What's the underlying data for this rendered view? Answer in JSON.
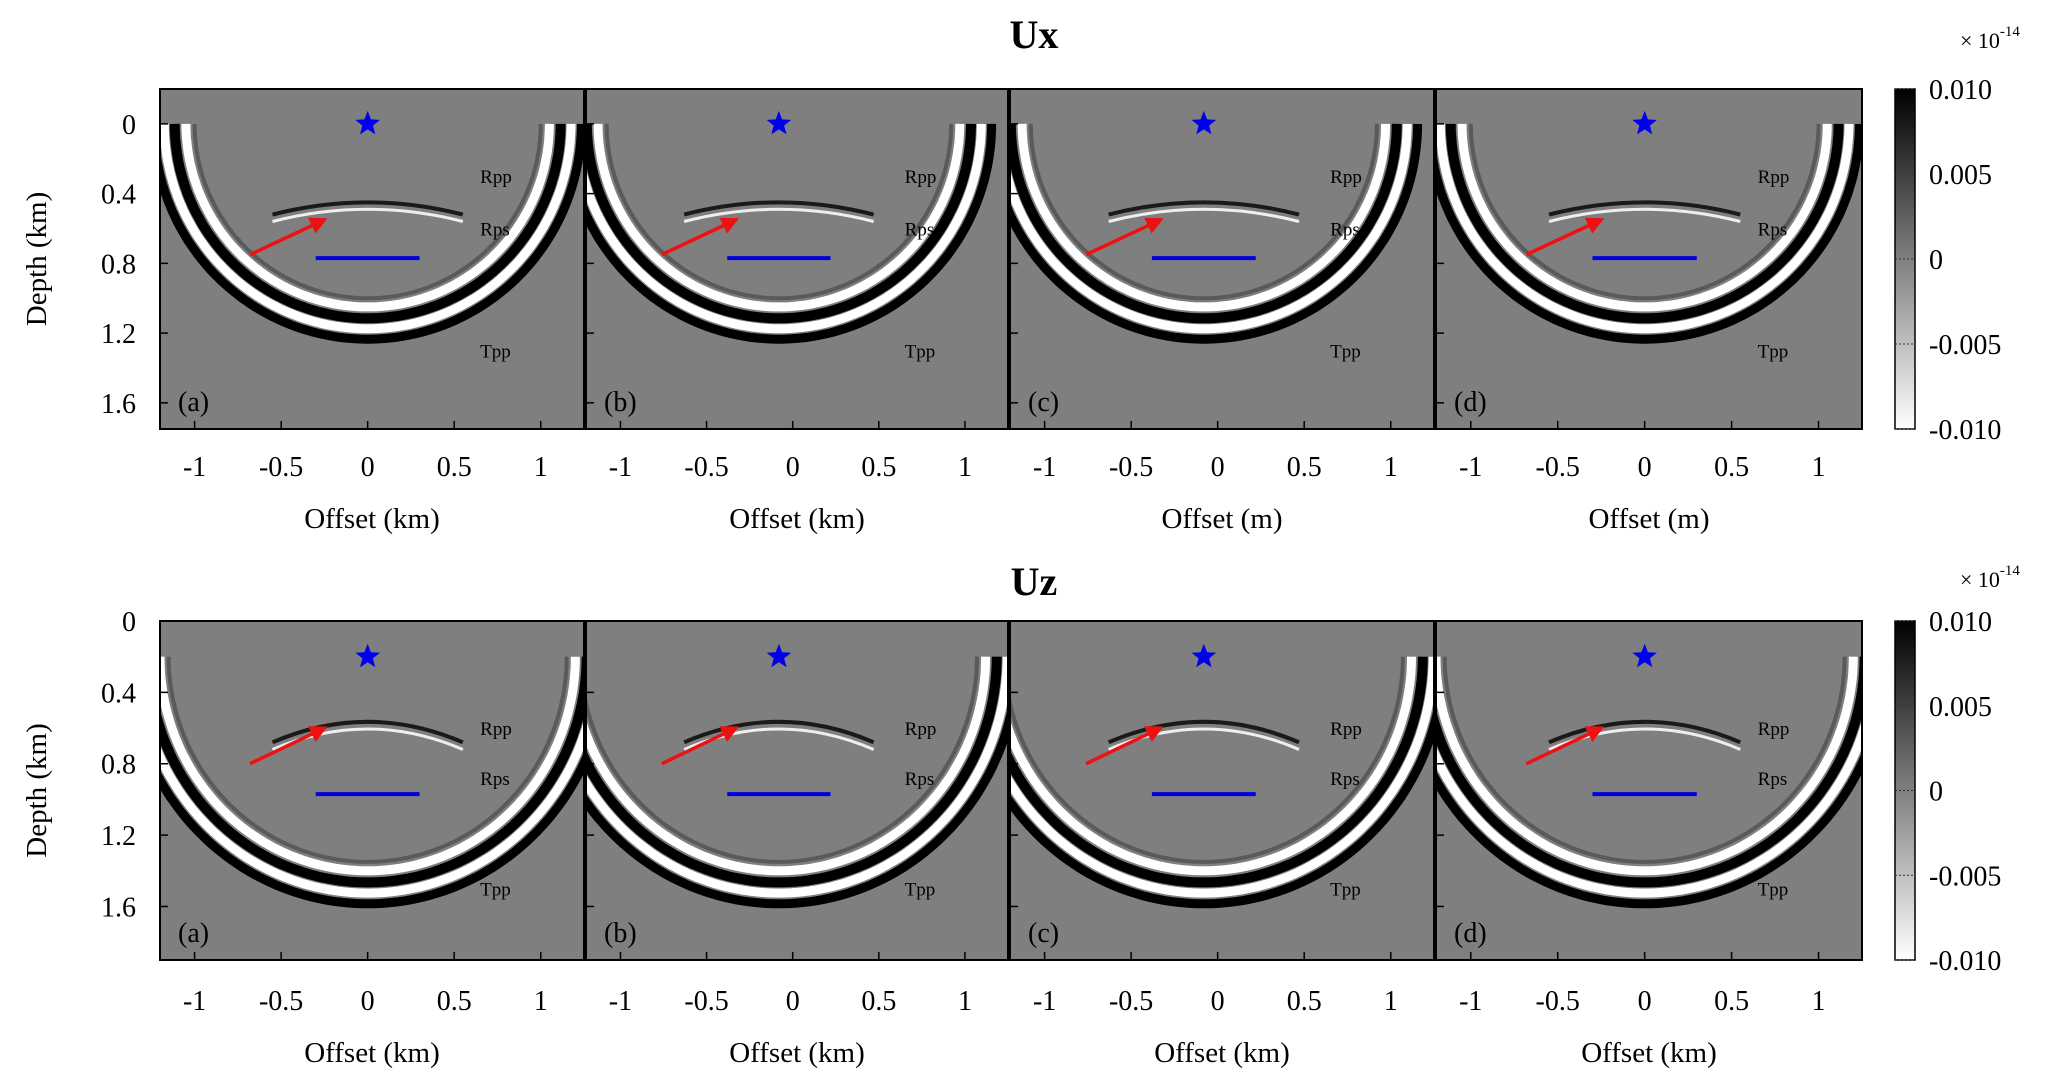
{
  "figure": {
    "mult_prefix": "× 10",
    "mult_exponent": "-14"
  },
  "colors": {
    "background_gray": "#7f7f7f",
    "source_star": "#0000ee",
    "reflector": "#0000dd",
    "arrow": "#ee1111"
  },
  "chart_data": [
    {
      "type": "heatmap",
      "title": "Ux",
      "colormap": "gray (white = -0.010, black = 0.010)",
      "colorbar": {
        "range": [
          -0.01,
          0.01
        ],
        "ticks": [
          "0.010",
          "0.005",
          "0",
          "-0.005",
          "-0.010"
        ]
      },
      "ylabel": "Depth  (km)",
      "yticks": [
        "0",
        "0.4",
        "0.8",
        "1.2",
        "1.6"
      ],
      "ylim": [
        -0.2,
        1.75
      ],
      "xticks": [
        "-1",
        "-0.5",
        "0",
        "0.5",
        "1"
      ],
      "xlim": [
        -1.2,
        1.25
      ],
      "annotations": [
        "Rpp",
        "Rps",
        "Tpp"
      ],
      "panels": [
        {
          "label": "(a)",
          "xlabel": "Offset  (km)",
          "source_x": 0,
          "source_depth": 0,
          "reflector_x": [
            -0.3,
            0.3
          ],
          "reflector_depth": 0.77
        },
        {
          "label": "(b)",
          "xlabel": "Offset  (km)",
          "source_x": -0.08,
          "source_depth": 0,
          "reflector_x": [
            -0.38,
            0.22
          ],
          "reflector_depth": 0.77
        },
        {
          "label": "(c)",
          "xlabel": "Offset  (m)",
          "source_x": -0.08,
          "source_depth": 0,
          "reflector_x": [
            -0.38,
            0.22
          ],
          "reflector_depth": 0.77
        },
        {
          "label": "(d)",
          "xlabel": "Offset  (m)",
          "source_x": 0,
          "source_depth": 0,
          "reflector_x": [
            -0.3,
            0.3
          ],
          "reflector_depth": 0.77
        }
      ]
    },
    {
      "type": "heatmap",
      "title": "Uz",
      "colormap": "gray (white = -0.010, black = 0.010)",
      "colorbar": {
        "range": [
          -0.01,
          0.01
        ],
        "ticks": [
          "0.010",
          "0.005",
          "0",
          "-0.005",
          "-0.010"
        ]
      },
      "ylabel": "Depth  (km)",
      "yticks": [
        "0",
        "0.4",
        "0.8",
        "1.2",
        "1.6"
      ],
      "ylim": [
        0,
        1.9
      ],
      "xticks": [
        "-1",
        "-0.5",
        "0",
        "0.5",
        "1"
      ],
      "xlim": [
        -1.2,
        1.25
      ],
      "annotations": [
        "Rpp",
        "Rps",
        "Tpp"
      ],
      "panels": [
        {
          "label": "(a)",
          "xlabel": "Offset  (km)",
          "source_x": 0,
          "source_depth": 0.2,
          "reflector_x": [
            -0.3,
            0.3
          ],
          "reflector_depth": 0.97
        },
        {
          "label": "(b)",
          "xlabel": "Offset  (km)",
          "source_x": -0.08,
          "source_depth": 0.2,
          "reflector_x": [
            -0.38,
            0.22
          ],
          "reflector_depth": 0.97
        },
        {
          "label": "(c)",
          "xlabel": "Offset  (km)",
          "source_x": -0.08,
          "source_depth": 0.2,
          "reflector_x": [
            -0.38,
            0.22
          ],
          "reflector_depth": 0.97
        },
        {
          "label": "(d)",
          "xlabel": "Offset  (km)",
          "source_x": 0,
          "source_depth": 0.2,
          "reflector_x": [
            -0.3,
            0.3
          ],
          "reflector_depth": 0.97
        }
      ]
    }
  ]
}
